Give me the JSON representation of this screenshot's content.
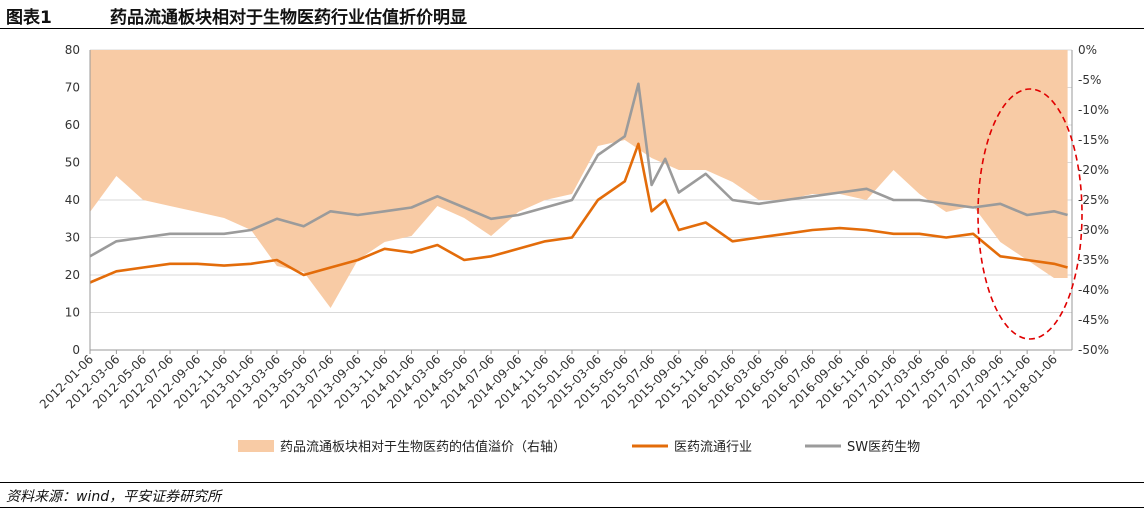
{
  "header": {
    "figure_number": "图表1",
    "title": "药品流通板块相对于生物医药行业估值折价明显"
  },
  "footer": {
    "source": "资料来源：wind，平安证券研究所"
  },
  "chart_data": {
    "type": "line",
    "title": "",
    "left_axis": {
      "min": 0,
      "max": 80,
      "step": 10,
      "ticks": [
        "0",
        "10",
        "20",
        "30",
        "40",
        "50",
        "60",
        "70",
        "80"
      ]
    },
    "right_axis": {
      "min": -50,
      "max": 0,
      "step": 5,
      "ticks": [
        "0%",
        "-5%",
        "-10%",
        "-15%",
        "-20%",
        "-25%",
        "-30%",
        "-35%",
        "-40%",
        "-45%",
        "-50%"
      ]
    },
    "x_ticks": [
      "2012-01-06",
      "2012-03-06",
      "2012-05-06",
      "2012-07-06",
      "2012-09-06",
      "2012-11-06",
      "2013-01-06",
      "2013-03-06",
      "2013-05-06",
      "2013-07-06",
      "2013-09-06",
      "2013-11-06",
      "2014-01-06",
      "2014-03-06",
      "2014-05-06",
      "2014-07-06",
      "2014-09-06",
      "2014-11-06",
      "2015-01-06",
      "2015-03-06",
      "2015-05-06",
      "2015-07-06",
      "2015-09-06",
      "2015-11-06",
      "2016-01-06",
      "2016-03-06",
      "2016-05-06",
      "2016-07-06",
      "2016-09-06",
      "2016-11-06",
      "2017-01-06",
      "2017-03-06",
      "2017-05-06",
      "2017-07-06",
      "2017-09-06",
      "2017-11-06",
      "2018-01-06"
    ],
    "grid": "horizontal",
    "legend_position": "bottom",
    "annotation": "red dashed ellipse highlighting 2017-07 to 2018-01",
    "series": [
      {
        "name": "药品流通板块相对于生物医药的估值溢价（右轴）",
        "kind": "area",
        "axis": "right",
        "color": "#F8CBA5",
        "x": [
          "2012-01-06",
          "2012-03-06",
          "2012-05-06",
          "2012-07-06",
          "2012-09-06",
          "2012-11-06",
          "2013-01-06",
          "2013-03-06",
          "2013-05-06",
          "2013-07-06",
          "2013-09-06",
          "2013-11-06",
          "2014-01-06",
          "2014-03-06",
          "2014-05-06",
          "2014-07-06",
          "2014-09-06",
          "2014-11-06",
          "2015-01-06",
          "2015-03-06",
          "2015-05-06",
          "2015-07-06",
          "2015-09-06",
          "2015-11-06",
          "2016-01-06",
          "2016-03-06",
          "2016-05-06",
          "2016-07-06",
          "2016-09-06",
          "2016-11-06",
          "2017-01-06",
          "2017-03-06",
          "2017-05-06",
          "2017-07-06",
          "2017-09-06",
          "2017-11-06",
          "2018-01-06",
          "2018-02-06"
        ],
        "values": [
          -27,
          -21,
          -25,
          -26,
          -27,
          -28,
          -30,
          -36,
          -37,
          -43,
          -35,
          -32,
          -31,
          -26,
          -28,
          -31,
          -27,
          -25,
          -24,
          -16,
          -15,
          -18,
          -20,
          -20,
          -22,
          -25,
          -25,
          -24,
          -24,
          -25,
          -20,
          -24,
          -27,
          -26,
          -32,
          -35,
          -38,
          -38
        ]
      },
      {
        "name": "医药流通行业",
        "kind": "line",
        "axis": "left",
        "color": "#E36C0A",
        "x": [
          "2012-01-06",
          "2012-03-06",
          "2012-05-06",
          "2012-07-06",
          "2012-09-06",
          "2012-11-06",
          "2013-01-06",
          "2013-03-06",
          "2013-05-06",
          "2013-07-06",
          "2013-09-06",
          "2013-11-06",
          "2014-01-06",
          "2014-03-06",
          "2014-05-06",
          "2014-07-06",
          "2014-09-06",
          "2014-11-06",
          "2015-01-06",
          "2015-03-06",
          "2015-05-06",
          "2015-06-06",
          "2015-07-06",
          "2015-08-06",
          "2015-09-06",
          "2015-11-06",
          "2016-01-06",
          "2016-03-06",
          "2016-05-06",
          "2016-07-06",
          "2016-09-06",
          "2016-11-06",
          "2017-01-06",
          "2017-03-06",
          "2017-05-06",
          "2017-07-06",
          "2017-09-06",
          "2017-11-06",
          "2018-01-06",
          "2018-02-06"
        ],
        "values": [
          18,
          21,
          22,
          23,
          23,
          22.5,
          23,
          24,
          20,
          22,
          24,
          27,
          26,
          28,
          24,
          25,
          27,
          29,
          30,
          40,
          45,
          55,
          37,
          40,
          32,
          34,
          29,
          30,
          31,
          32,
          32.5,
          32,
          31,
          31,
          30,
          31,
          25,
          24,
          23,
          22
        ]
      },
      {
        "name": "SW医药生物",
        "kind": "line",
        "axis": "left",
        "color": "#9B9B9B",
        "x": [
          "2012-01-06",
          "2012-03-06",
          "2012-05-06",
          "2012-07-06",
          "2012-09-06",
          "2012-11-06",
          "2013-01-06",
          "2013-03-06",
          "2013-05-06",
          "2013-07-06",
          "2013-09-06",
          "2013-11-06",
          "2014-01-06",
          "2014-03-06",
          "2014-05-06",
          "2014-07-06",
          "2014-09-06",
          "2014-11-06",
          "2015-01-06",
          "2015-03-06",
          "2015-05-06",
          "2015-06-06",
          "2015-07-06",
          "2015-08-06",
          "2015-09-06",
          "2015-11-06",
          "2016-01-06",
          "2016-03-06",
          "2016-05-06",
          "2016-07-06",
          "2016-09-06",
          "2016-11-06",
          "2017-01-06",
          "2017-03-06",
          "2017-05-06",
          "2017-07-06",
          "2017-09-06",
          "2017-11-06",
          "2018-01-06",
          "2018-02-06"
        ],
        "values": [
          25,
          29,
          30,
          31,
          31,
          31,
          32,
          35,
          33,
          37,
          36,
          37,
          38,
          41,
          38,
          35,
          36,
          38,
          40,
          52,
          57,
          71,
          44,
          51,
          42,
          47,
          40,
          39,
          40,
          41,
          42,
          43,
          40,
          40,
          39,
          38,
          39,
          36,
          37,
          36
        ]
      }
    ]
  }
}
